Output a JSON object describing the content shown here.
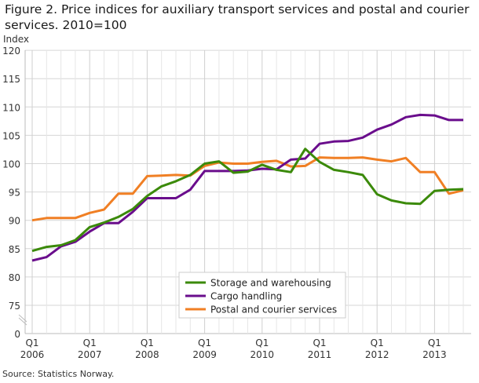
{
  "chart_data": {
    "type": "line",
    "title": "Figure 2. Price indices for auxiliary transport services and postal and courier services. 2010=100",
    "ylabel": "Index",
    "xlabel": "",
    "ylim": [
      0,
      120
    ],
    "y_axis_break": [
      0,
      75
    ],
    "yticks": [
      "120",
      "115",
      "110",
      "105",
      "100",
      "95",
      "90",
      "85",
      "80",
      "75",
      "0"
    ],
    "ytick_values": [
      120,
      115,
      110,
      105,
      100,
      95,
      90,
      85,
      80,
      75,
      0
    ],
    "xtick_labels": [
      [
        "Q1",
        "2006"
      ],
      [
        "Q1",
        "2007"
      ],
      [
        "Q1",
        "2008"
      ],
      [
        "Q1",
        "2009"
      ],
      [
        "Q1",
        "2010"
      ],
      [
        "Q1",
        "2011"
      ],
      [
        "Q1",
        "2012"
      ],
      [
        "Q1",
        "2013"
      ]
    ],
    "x": [
      "2006Q1",
      "2006Q2",
      "2006Q3",
      "2006Q4",
      "2007Q1",
      "2007Q2",
      "2007Q3",
      "2007Q4",
      "2008Q1",
      "2008Q2",
      "2008Q3",
      "2008Q4",
      "2009Q1",
      "2009Q2",
      "2009Q3",
      "2009Q4",
      "2010Q1",
      "2010Q2",
      "2010Q3",
      "2010Q4",
      "2011Q1",
      "2011Q2",
      "2011Q3",
      "2011Q4",
      "2012Q1",
      "2012Q2",
      "2012Q3",
      "2012Q4",
      "2013Q1",
      "2013Q2",
      "2013Q3"
    ],
    "grid": true,
    "legend_position": "bottom-center",
    "series": [
      {
        "name": "Storage and warehousing",
        "color": "#3b8a0a",
        "values": [
          84.6,
          85.3,
          85.6,
          86.5,
          88.8,
          89.6,
          90.6,
          92.0,
          94.3,
          96.0,
          96.9,
          98.0,
          100.0,
          100.4,
          98.4,
          98.6,
          99.8,
          98.9,
          98.5,
          102.6,
          100.3,
          98.9,
          98.5,
          98.0,
          94.6,
          93.5,
          93.0,
          92.9,
          95.2,
          95.4,
          95.5
        ]
      },
      {
        "name": "Cargo handling",
        "color": "#6a0d8c",
        "values": [
          82.9,
          83.5,
          85.4,
          86.2,
          88.0,
          89.5,
          89.5,
          91.5,
          93.9,
          93.9,
          93.9,
          95.4,
          98.7,
          98.7,
          98.7,
          98.8,
          99.1,
          99.0,
          100.7,
          100.9,
          103.5,
          103.9,
          104.0,
          104.6,
          106.0,
          106.9,
          108.2,
          108.6,
          108.5,
          107.7,
          107.7
        ]
      },
      {
        "name": "Postal and courier services",
        "color": "#f07f24",
        "values": [
          90.0,
          90.4,
          90.4,
          90.4,
          91.3,
          91.9,
          94.7,
          94.7,
          97.8,
          97.9,
          98.0,
          97.9,
          99.6,
          100.2,
          100.0,
          100.0,
          100.3,
          100.5,
          99.5,
          99.6,
          101.1,
          101.0,
          101.0,
          101.1,
          100.7,
          100.4,
          101.0,
          98.5,
          98.5,
          94.7,
          95.3
        ]
      }
    ]
  },
  "source": "Source: Statistics Norway."
}
